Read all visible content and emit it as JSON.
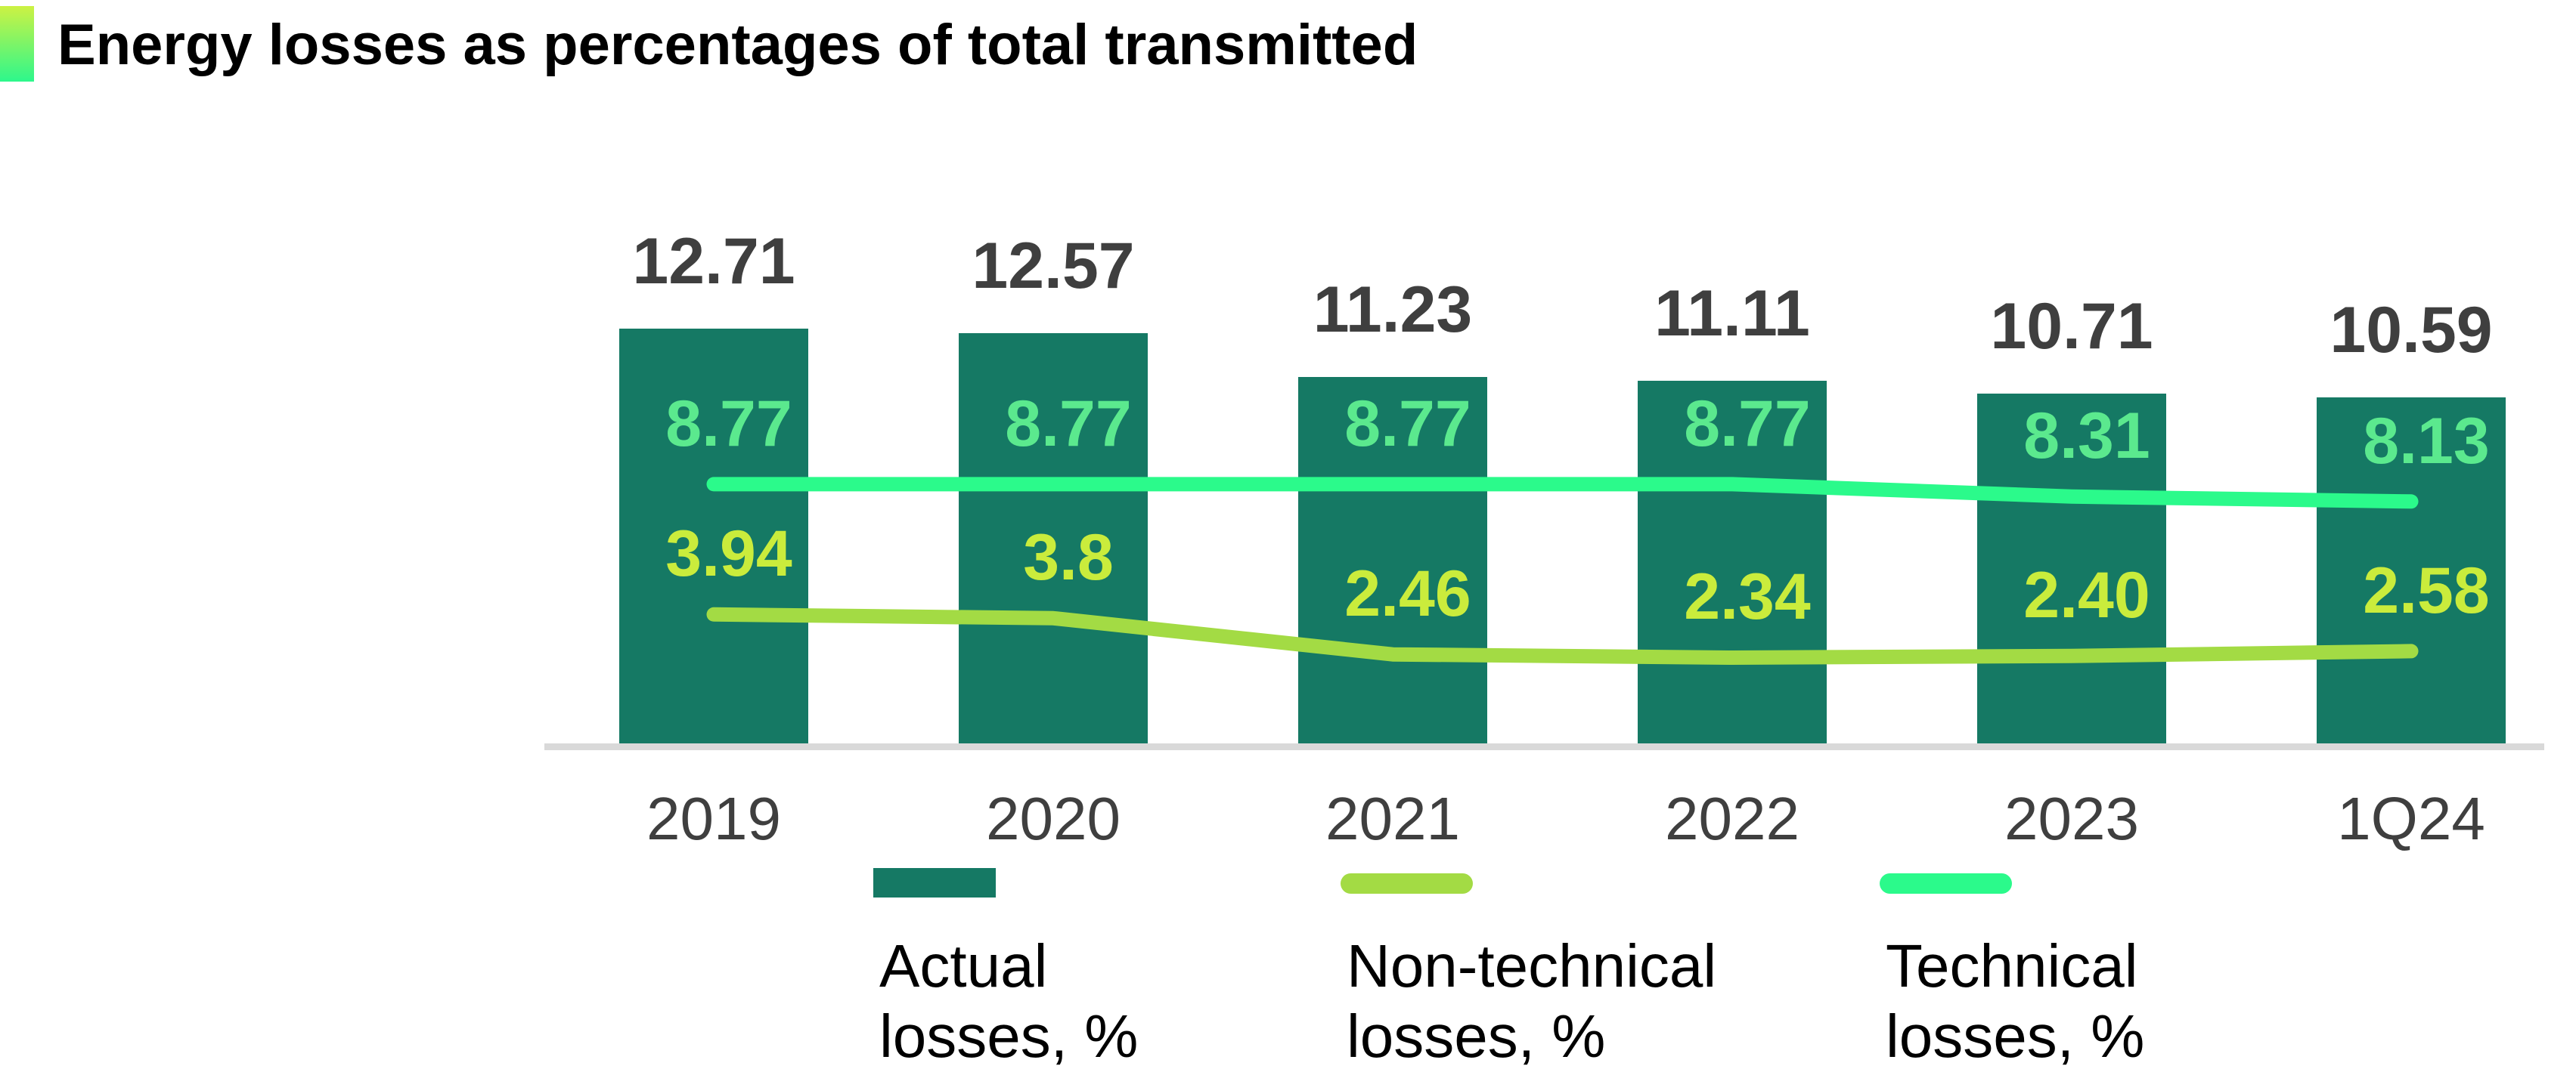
{
  "title": "Energy losses as percentages of total transmitted",
  "accent": {
    "top_color": "#CDF243",
    "bottom_color": "#2DF78C"
  },
  "colors": {
    "background": "#FFFFFF",
    "bar_fill": "#157964",
    "technical_line": "#2BFA8B",
    "non_technical_line": "#A3DB44",
    "bar_value_label": "#3F3F3F",
    "technical_value_label": "#5BE98E",
    "non_technical_value_label": "#CAEC3C",
    "axis_line": "#D9D9D9",
    "axis_tick_label": "#3F3F3F",
    "legend_text": "#000000",
    "title_text": "#000000"
  },
  "chart_data": {
    "type": "bar",
    "subtype": "combo-bar-with-lines",
    "title": "Energy losses as percentages of total transmitted",
    "xlabel": "",
    "ylabel": "",
    "value_axis_visible": false,
    "gridlines": false,
    "legend_position": "bottom",
    "categories": [
      "2019",
      "2020",
      "2021",
      "2022",
      "2023",
      "1Q24"
    ],
    "series": [
      {
        "name": "Actual losses, %",
        "type": "bar",
        "color": "#157964",
        "values": [
          12.71,
          12.57,
          11.23,
          11.11,
          10.71,
          10.59
        ],
        "labels": [
          "12.71",
          "12.57",
          "11.23",
          "11.11",
          "10.71",
          "10.59"
        ],
        "label_color": "#3F3F3F"
      },
      {
        "name": "Technical losses, %",
        "type": "line",
        "color": "#2BFA8B",
        "values": [
          8.77,
          8.77,
          8.77,
          8.77,
          8.31,
          8.13
        ],
        "labels": [
          "8.77",
          "8.77",
          "8.77",
          "8.77",
          "8.31",
          "8.13"
        ],
        "label_color": "#5BE98E"
      },
      {
        "name": "Non-technical losses, %",
        "type": "line",
        "color": "#A3DB44",
        "values": [
          3.94,
          3.8,
          2.46,
          2.34,
          2.4,
          2.58
        ],
        "labels": [
          "3.94",
          "3.8",
          "2.46",
          "2.34",
          "2.40",
          "2.58"
        ],
        "label_color": "#CAEC3C"
      }
    ]
  },
  "legend": {
    "items": [
      {
        "series": "Actual losses, %",
        "swatch": "bar",
        "line1": "Actual",
        "line2": "losses, %"
      },
      {
        "series": "Non-technical losses, %",
        "swatch": "line",
        "line1": "Non-technical",
        "line2": "losses, %"
      },
      {
        "series": "Technical losses, %",
        "swatch": "line",
        "line1": "Technical",
        "line2": "losses, %"
      }
    ]
  }
}
